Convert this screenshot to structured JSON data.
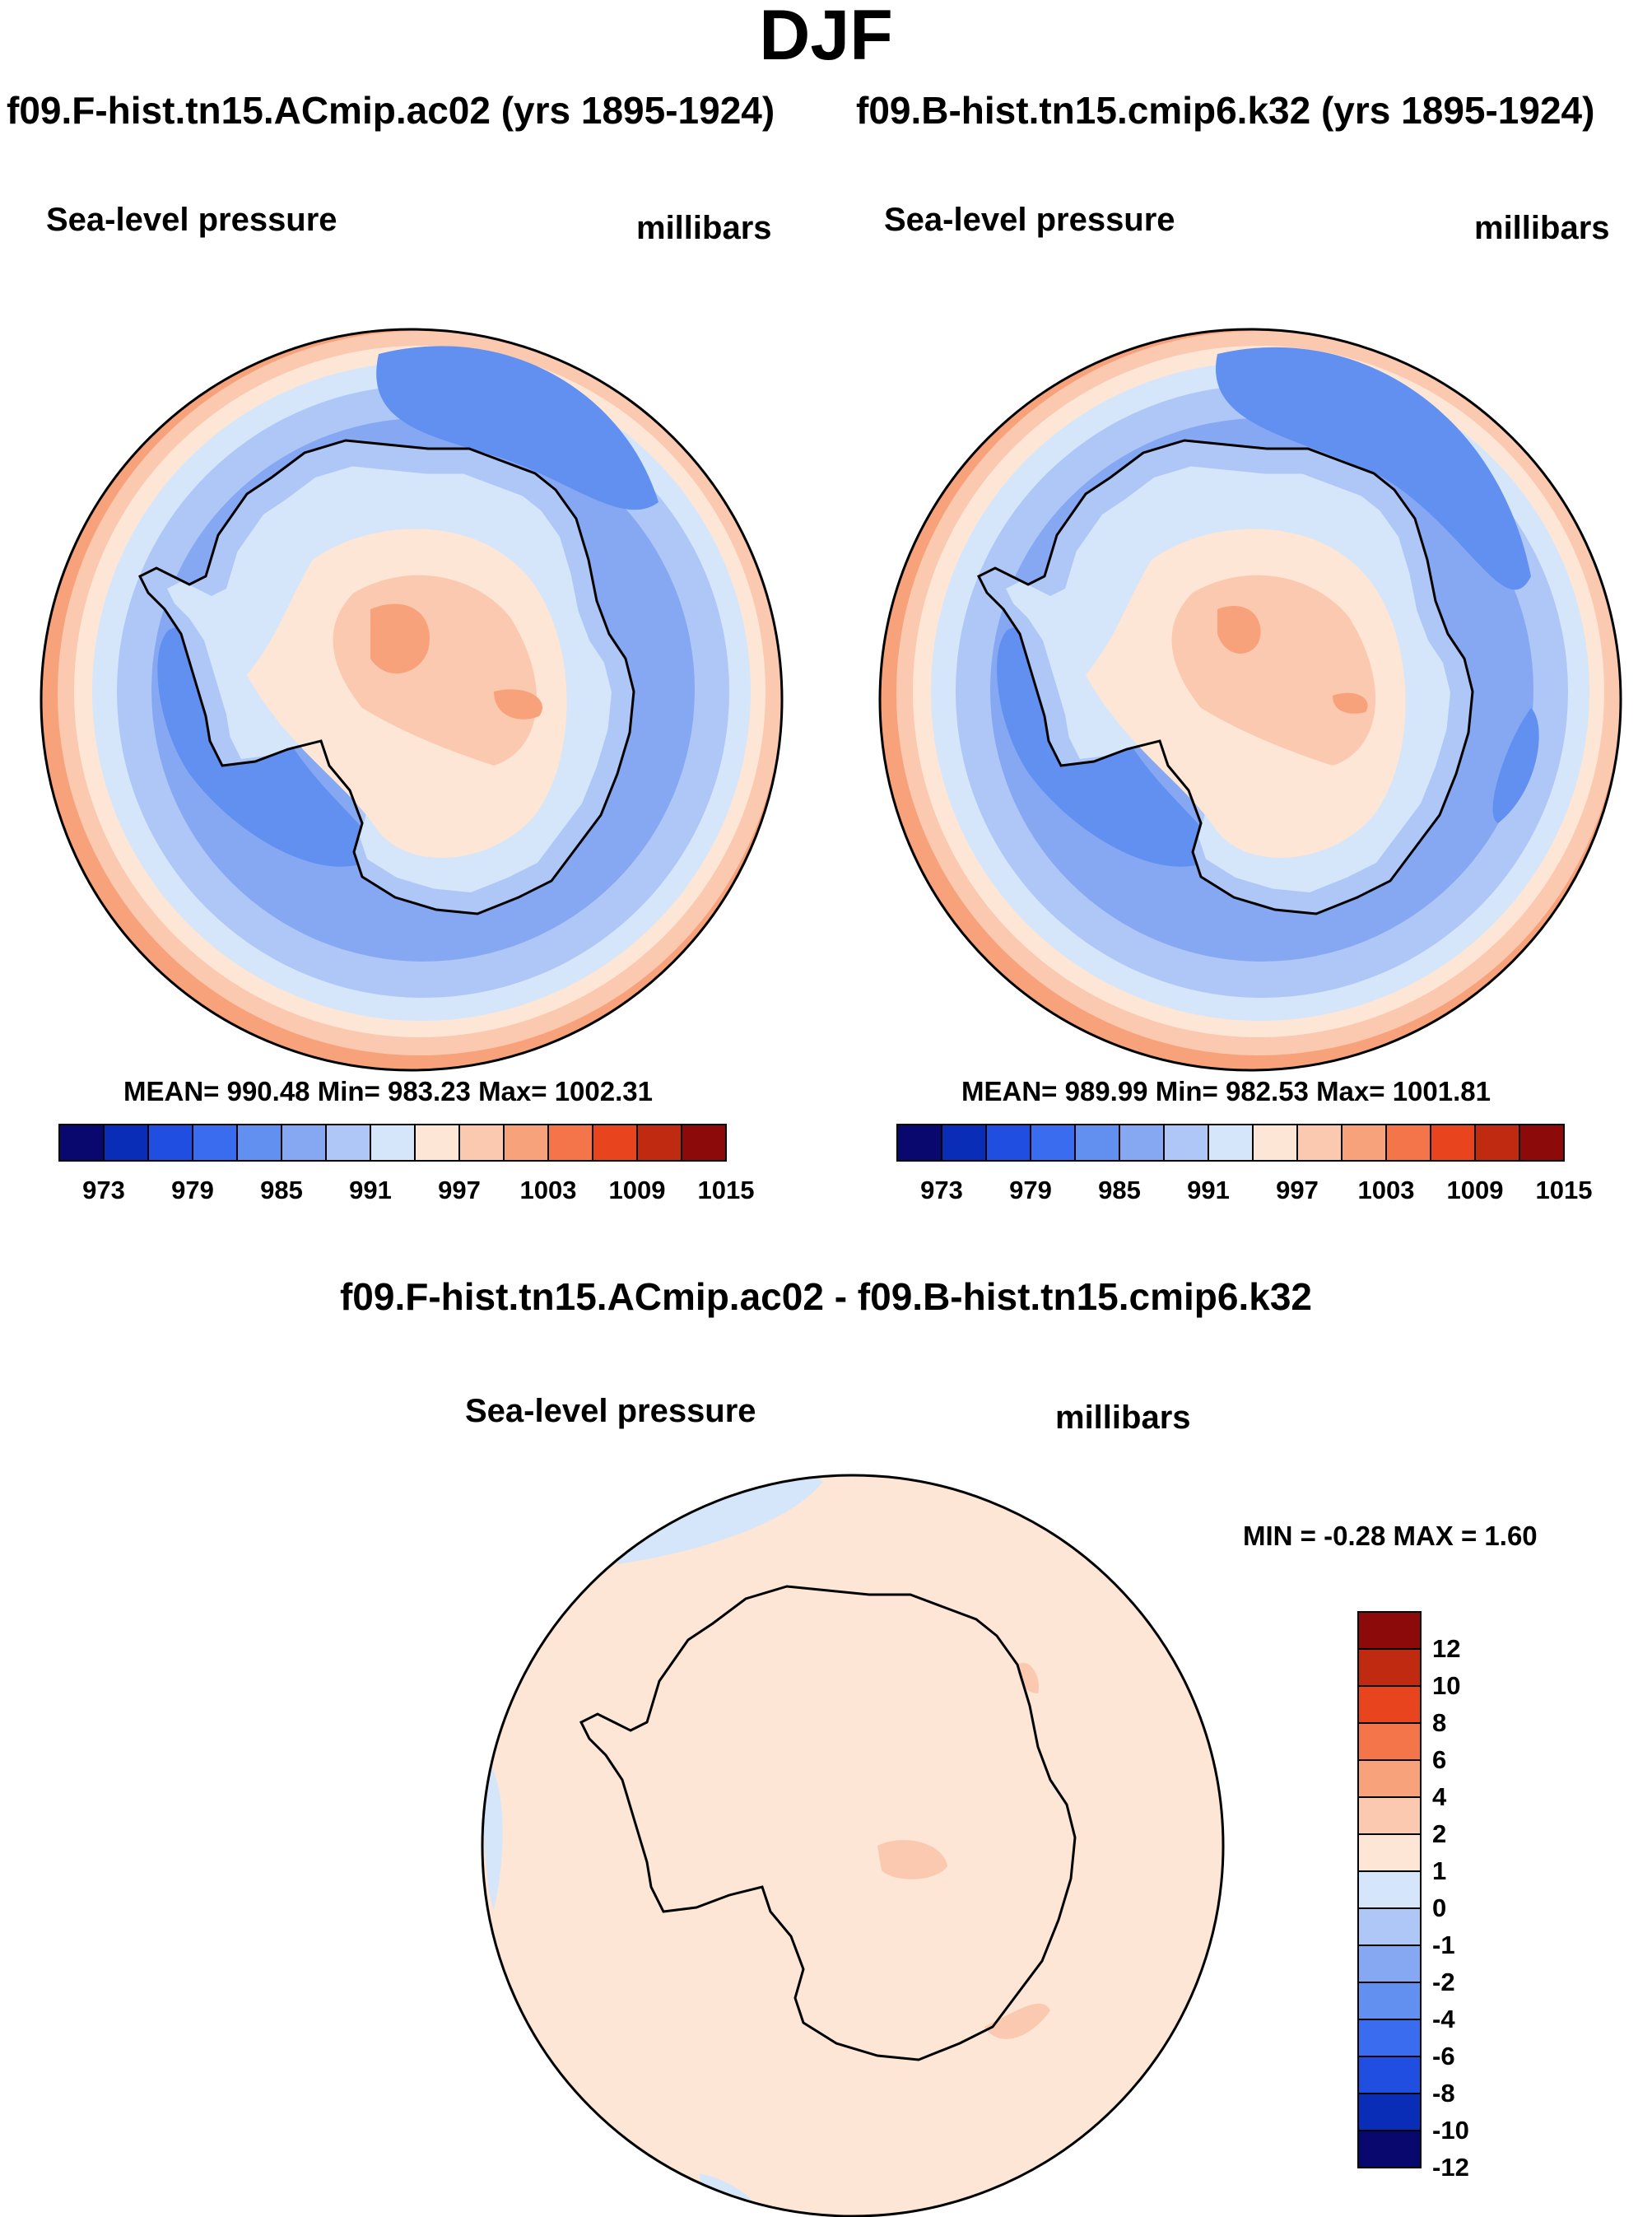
{
  "title": "DJF",
  "panels": [
    {
      "header": "f09.F-hist.tn15.ACmip.ac02 (yrs 1895-1924)",
      "variable": "Sea-level pressure",
      "units": "millibars",
      "stats": "MEAN= 990.48  Min= 983.23  Max= 1002.31",
      "colorbar_ticks": [
        "973",
        "979",
        "985",
        "991",
        "997",
        "1003",
        "1009",
        "1015"
      ]
    },
    {
      "header": "f09.B-hist.tn15.cmip6.k32 (yrs 1895-1924)",
      "variable": "Sea-level pressure",
      "units": "millibars",
      "stats": "MEAN= 989.99  Min= 982.53  Max= 1001.81",
      "colorbar_ticks": [
        "973",
        "979",
        "985",
        "991",
        "997",
        "1003",
        "1009",
        "1015"
      ]
    }
  ],
  "difference": {
    "header": "f09.F-hist.tn15.ACmip.ac02 - f09.B-hist.tn15.cmip6.k32",
    "variable": "Sea-level pressure",
    "units": "millibars",
    "minmax": "MIN =  -0.28 MAX =   1.60",
    "colorbar_ticks": [
      "12",
      "10",
      "8",
      "6",
      "4",
      "2",
      "1",
      "0",
      "-1",
      "-2",
      "-4",
      "-6",
      "-8",
      "-10",
      "-12"
    ]
  },
  "palettes": {
    "slp": [
      "#08086e",
      "#0a2db8",
      "#1f4ee0",
      "#3a6cf0",
      "#6190f0",
      "#86a8f2",
      "#aec7f6",
      "#d5e6fa",
      "#fde6d5",
      "#fbc8b0",
      "#f7a27b",
      "#f47549",
      "#e8451f",
      "#bf2a10",
      "#8c0a0a"
    ],
    "diff": [
      "#8c0a0a",
      "#bf2a10",
      "#e8451f",
      "#f47549",
      "#f7a27b",
      "#fbc8b0",
      "#fde6d5",
      "#d5e6fa",
      "#aec7f6",
      "#86a8f2",
      "#6190f0",
      "#3a6cf0",
      "#1f4ee0",
      "#0a2db8",
      "#08086e"
    ]
  }
}
